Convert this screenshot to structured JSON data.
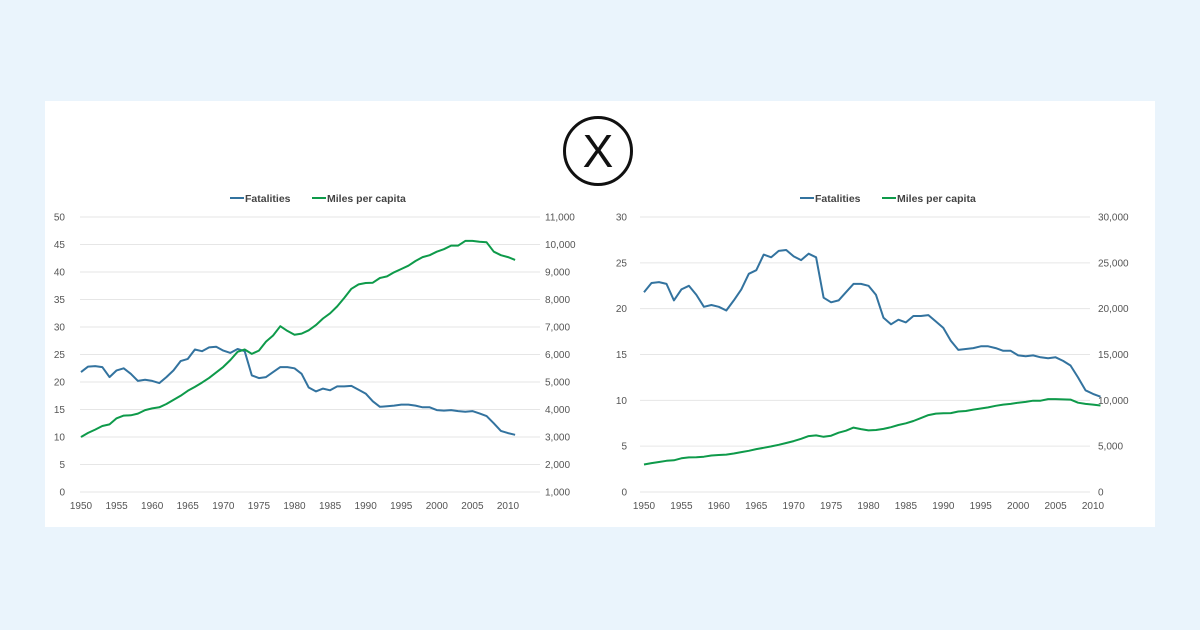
{
  "logo": {
    "symbol": "X"
  },
  "colors": {
    "fatalities": "#33739f",
    "miles": "#0e9a4a",
    "grid": "#e6e6e6",
    "background": "#eaf4fc"
  },
  "chart_data": [
    {
      "type": "line",
      "legend": [
        "Fatalities",
        "Miles per capita"
      ],
      "legend_position": "top",
      "grid": true,
      "x": [
        1950,
        1951,
        1952,
        1953,
        1954,
        1955,
        1956,
        1957,
        1958,
        1959,
        1960,
        1961,
        1962,
        1963,
        1964,
        1965,
        1966,
        1967,
        1968,
        1969,
        1970,
        1971,
        1972,
        1973,
        1974,
        1975,
        1976,
        1977,
        1978,
        1979,
        1980,
        1981,
        1982,
        1983,
        1984,
        1985,
        1986,
        1987,
        1988,
        1989,
        1990,
        1991,
        1992,
        1993,
        1994,
        1995,
        1996,
        1997,
        1998,
        1999,
        2000,
        2001,
        2002,
        2003,
        2004,
        2005,
        2006,
        2007,
        2008,
        2009,
        2010,
        2011
      ],
      "xticks": [
        "1950",
        "1955",
        "1960",
        "1965",
        "1970",
        "1975",
        "1980",
        "1985",
        "1990",
        "1995",
        "2000",
        "2005",
        "2010"
      ],
      "ylim_left": [
        0,
        50
      ],
      "yticks_left": [
        "0",
        "5",
        "10",
        "15",
        "20",
        "25",
        "30",
        "35",
        "40",
        "45",
        "50"
      ],
      "ylim_right": [
        1000,
        11000
      ],
      "yticks_right": [
        "1,000",
        "2,000",
        "3,000",
        "4,000",
        "5,000",
        "6,000",
        "7,000",
        "8,000",
        "9,000",
        "10,000",
        "11,000"
      ],
      "series": [
        {
          "name": "Fatalities",
          "axis": "left",
          "values": [
            21.8,
            22.8,
            22.9,
            22.7,
            20.9,
            22.1,
            22.5,
            21.5,
            20.2,
            20.4,
            20.2,
            19.8,
            20.9,
            22.1,
            23.8,
            24.2,
            25.9,
            25.6,
            26.3,
            26.4,
            25.7,
            25.3,
            26.0,
            25.6,
            21.2,
            20.7,
            20.9,
            21.8,
            22.7,
            22.7,
            22.5,
            21.5,
            19.0,
            18.3,
            18.8,
            18.5,
            19.2,
            19.2,
            19.3,
            18.6,
            17.9,
            16.5,
            15.5,
            15.6,
            15.7,
            15.9,
            15.9,
            15.7,
            15.4,
            15.4,
            14.9,
            14.8,
            14.9,
            14.7,
            14.6,
            14.7,
            14.3,
            13.8,
            12.5,
            11.1,
            10.7,
            10.4
          ]
        },
        {
          "name": "Miles per capita",
          "axis": "right",
          "values": [
            3000,
            3150,
            3270,
            3400,
            3460,
            3680,
            3780,
            3790,
            3850,
            3980,
            4040,
            4080,
            4200,
            4350,
            4500,
            4680,
            4820,
            4980,
            5150,
            5350,
            5550,
            5800,
            6100,
            6180,
            6020,
            6140,
            6470,
            6690,
            7030,
            6860,
            6720,
            6760,
            6880,
            7070,
            7310,
            7500,
            7750,
            8060,
            8390,
            8550,
            8600,
            8610,
            8780,
            8840,
            8990,
            9110,
            9230,
            9400,
            9540,
            9610,
            9740,
            9830,
            9960,
            9960,
            10130,
            10130,
            10100,
            10080,
            9740,
            9610,
            9540,
            9440
          ]
        }
      ]
    },
    {
      "type": "line",
      "legend": [
        "Fatalities",
        "Miles per capita"
      ],
      "legend_position": "top",
      "grid": true,
      "x": "same as first chart",
      "xticks": [
        "1950",
        "1955",
        "1960",
        "1965",
        "1970",
        "1975",
        "1980",
        "1985",
        "1990",
        "1995",
        "2000",
        "2005",
        "2010"
      ],
      "ylim_left": [
        0,
        30
      ],
      "yticks_left": [
        "0",
        "5",
        "10",
        "15",
        "20",
        "25",
        "30"
      ],
      "ylim_right": [
        0,
        30000
      ],
      "yticks_right": [
        "0",
        "5,000",
        "10,000",
        "15,000",
        "20,000",
        "25,000",
        "30,000"
      ],
      "series": "same values as first chart, rescaled axes"
    }
  ]
}
